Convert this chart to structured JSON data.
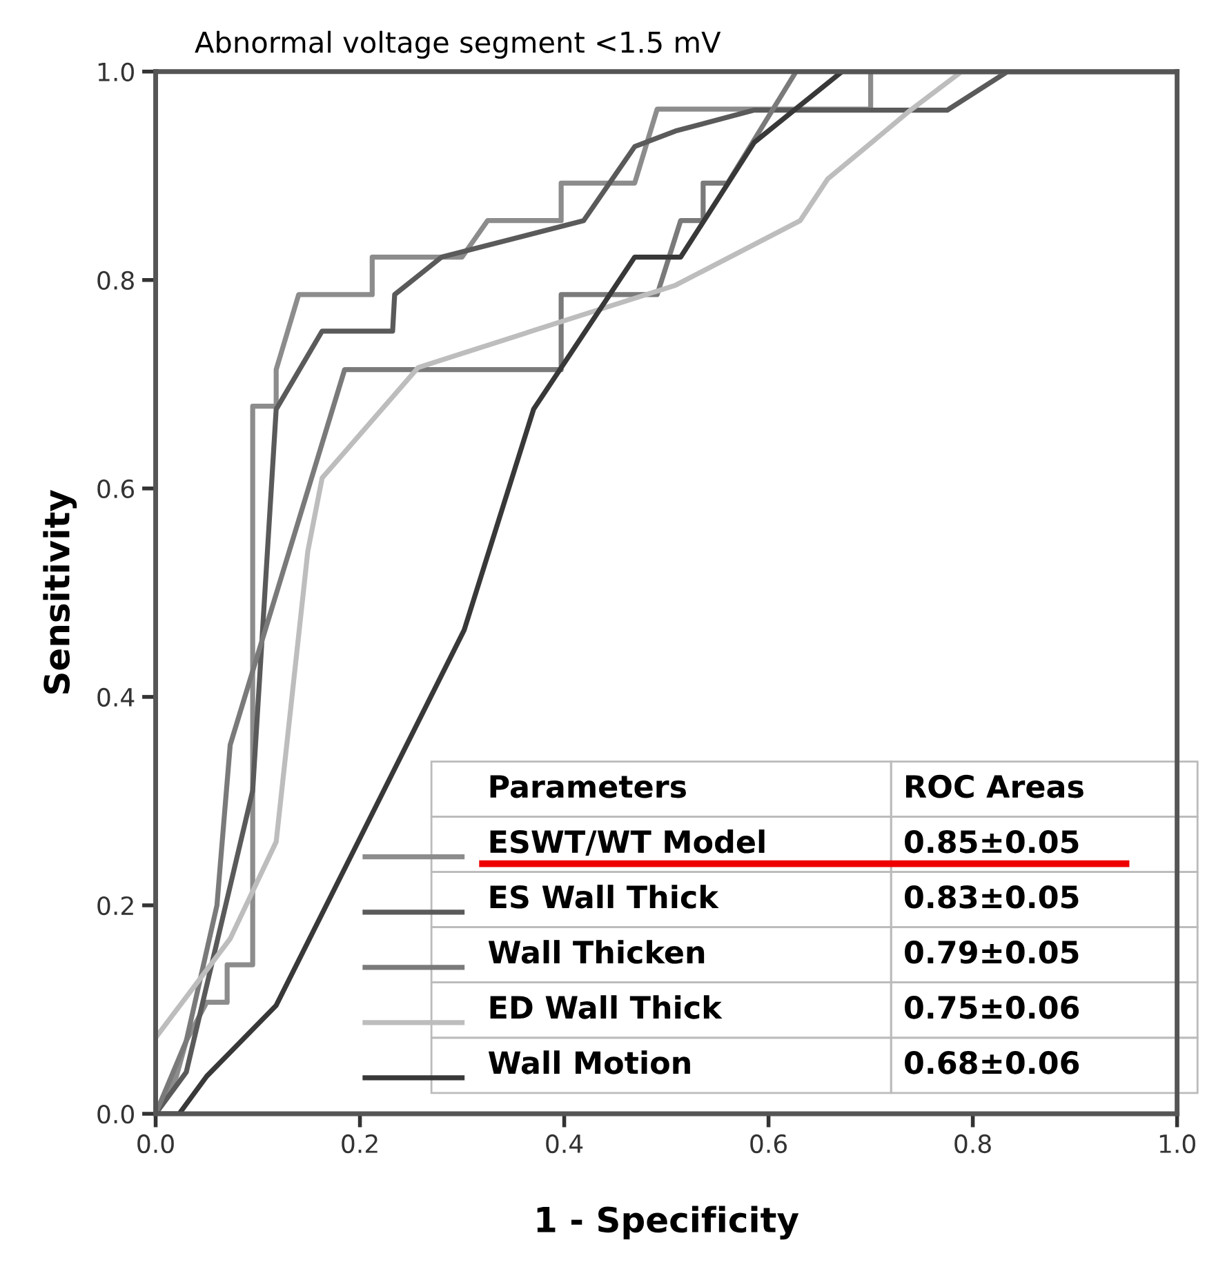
{
  "chart_data": {
    "type": "line",
    "title": "Abnormal voltage segment <1.5 mV",
    "xlabel": "1 - Specificity",
    "ylabel": "Sensitivity",
    "legend_title": "Parameters",
    "annotations": [
      "ROC Areas",
      "0.85±0.05",
      "0.83±0.05",
      "0.79±0.05",
      "0.75±0.06",
      "0.68±0.06"
    ],
    "xlim": [
      0,
      1
    ],
    "ylim": [
      0,
      1
    ],
    "xticks": [
      {
        "value": 0,
        "label": "0.0"
      },
      {
        "value": 0.2,
        "label": "0.2"
      },
      {
        "value": 0.4,
        "label": "0.4"
      },
      {
        "value": 0.6,
        "label": "0.6"
      },
      {
        "value": 0.8,
        "label": "0.8"
      },
      {
        "value": 1,
        "label": "1.0"
      }
    ],
    "yticks": [
      {
        "value": 0,
        "label": "0.0"
      },
      {
        "value": 0.2,
        "label": "0.2"
      },
      {
        "value": 0.4,
        "label": "0.4"
      },
      {
        "value": 0.6,
        "label": "0.6"
      },
      {
        "value": 0.8,
        "label": "0.8"
      },
      {
        "value": 1,
        "label": "1.0"
      }
    ],
    "grid": false,
    "legend": "bottom",
    "marker": "none",
    "line_style": "solid",
    "series": [
      {
        "name": "ESWT/WT Model",
        "color": "#8c8c8c",
        "x": [
          0,
          0.02,
          0.03,
          0.05,
          0.07,
          0.07,
          0.095,
          0.095,
          0.118,
          0.118,
          0.14,
          0.212,
          0.212,
          0.3,
          0.325,
          0.397,
          0.397,
          0.469,
          0.491,
          0.7,
          0.7,
          1
        ],
        "values": [
          0,
          0.035,
          0.07,
          0.107,
          0.107,
          0.143,
          0.143,
          0.679,
          0.679,
          0.714,
          0.786,
          0.786,
          0.822,
          0.822,
          0.857,
          0.857,
          0.893,
          0.893,
          0.964,
          0.964,
          1,
          1
        ]
      },
      {
        "name": "ES Wall Thick",
        "color": "#5a5a5a",
        "x": [
          0,
          0.03,
          0.095,
          0.118,
          0.163,
          0.232,
          0.234,
          0.28,
          0.419,
          0.469,
          0.509,
          0.586,
          0.775,
          0.834,
          1
        ],
        "values": [
          0,
          0.04,
          0.31,
          0.676,
          0.751,
          0.751,
          0.786,
          0.822,
          0.857,
          0.928,
          0.943,
          0.963,
          0.963,
          1,
          1
        ]
      },
      {
        "name": "Wall Thicken",
        "color": "#7a7a7a",
        "x": [
          0,
          0.03,
          0.06,
          0.073,
          0.185,
          0.397,
          0.397,
          0.491,
          0.514,
          0.536,
          0.536,
          0.56,
          0.627,
          1
        ],
        "values": [
          0,
          0.07,
          0.2,
          0.354,
          0.714,
          0.714,
          0.786,
          0.786,
          0.857,
          0.857,
          0.893,
          0.893,
          1,
          1
        ]
      },
      {
        "name": "ED Wall Thick",
        "color": "#bdbdbd",
        "x": [
          0,
          0.073,
          0.118,
          0.149,
          0.163,
          0.257,
          0.397,
          0.509,
          0.631,
          0.658,
          0.739,
          0.789,
          1
        ],
        "values": [
          0.073,
          0.168,
          0.261,
          0.54,
          0.61,
          0.716,
          0.76,
          0.795,
          0.857,
          0.897,
          0.963,
          1,
          1
        ]
      },
      {
        "name": "Wall Motion",
        "color": "#383838",
        "x": [
          0,
          0.023,
          0.05,
          0.118,
          0.302,
          0.37,
          0.469,
          0.514,
          0.586,
          0.672,
          1
        ],
        "values": [
          0,
          0,
          0.036,
          0.104,
          0.464,
          0.676,
          0.822,
          0.822,
          0.932,
          1,
          1
        ]
      }
    ]
  }
}
